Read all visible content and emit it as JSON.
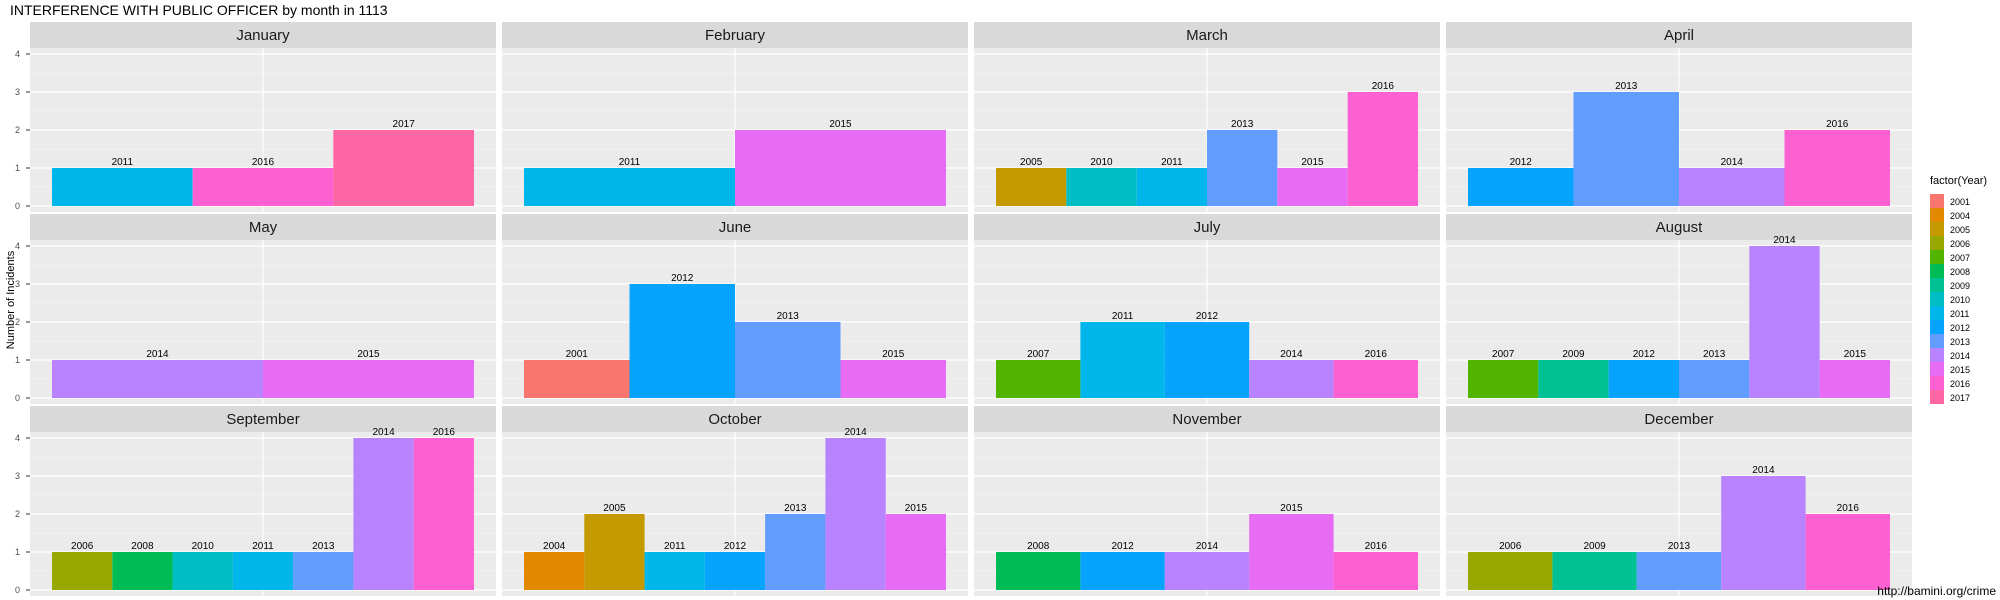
{
  "chart_data": {
    "type": "bar",
    "title": "INTERFERENCE WITH PUBLIC OFFICER by month in 1113",
    "ylabel": "Number of Incidents",
    "xlabel": "",
    "ylim": [
      0,
      4
    ],
    "y_ticks": [
      "0",
      "1",
      "2",
      "3",
      "4"
    ],
    "grid": true,
    "legend": {
      "title": "factor(Year)",
      "position": "right",
      "entries": [
        {
          "label": "2001",
          "color": "#F8766D"
        },
        {
          "label": "2004",
          "color": "#E38900"
        },
        {
          "label": "2005",
          "color": "#C49A00"
        },
        {
          "label": "2006",
          "color": "#99A800"
        },
        {
          "label": "2007",
          "color": "#53B400"
        },
        {
          "label": "2008",
          "color": "#00BC56"
        },
        {
          "label": "2009",
          "color": "#00C094"
        },
        {
          "label": "2010",
          "color": "#00BFC4"
        },
        {
          "label": "2011",
          "color": "#00B6EB"
        },
        {
          "label": "2012",
          "color": "#06A4FF"
        },
        {
          "label": "2013",
          "color": "#619CFF"
        },
        {
          "label": "2014",
          "color": "#B983FF"
        },
        {
          "label": "2015",
          "color": "#E76BF3"
        },
        {
          "label": "2016",
          "color": "#FD61D1"
        },
        {
          "label": "2017",
          "color": "#FF67A4"
        }
      ]
    },
    "panels": [
      {
        "month": "January",
        "bars": [
          {
            "year": "2011",
            "value": 1
          },
          {
            "year": "2016",
            "value": 1
          },
          {
            "year": "2017",
            "value": 2
          }
        ]
      },
      {
        "month": "February",
        "bars": [
          {
            "year": "2011",
            "value": 1
          },
          {
            "year": "2015",
            "value": 2
          }
        ]
      },
      {
        "month": "March",
        "bars": [
          {
            "year": "2005",
            "value": 1
          },
          {
            "year": "2010",
            "value": 1
          },
          {
            "year": "2011",
            "value": 1
          },
          {
            "year": "2013",
            "value": 2
          },
          {
            "year": "2015",
            "value": 1
          },
          {
            "year": "2016",
            "value": 3
          }
        ]
      },
      {
        "month": "April",
        "bars": [
          {
            "year": "2012",
            "value": 1
          },
          {
            "year": "2013",
            "value": 3
          },
          {
            "year": "2014",
            "value": 1
          },
          {
            "year": "2016",
            "value": 2
          }
        ]
      },
      {
        "month": "May",
        "bars": [
          {
            "year": "2014",
            "value": 1
          },
          {
            "year": "2015",
            "value": 1
          }
        ]
      },
      {
        "month": "June",
        "bars": [
          {
            "year": "2001",
            "value": 1
          },
          {
            "year": "2012",
            "value": 3
          },
          {
            "year": "2013",
            "value": 2
          },
          {
            "year": "2015",
            "value": 1
          }
        ]
      },
      {
        "month": "July",
        "bars": [
          {
            "year": "2007",
            "value": 1
          },
          {
            "year": "2011",
            "value": 2
          },
          {
            "year": "2012",
            "value": 2
          },
          {
            "year": "2014",
            "value": 1
          },
          {
            "year": "2016",
            "value": 1
          }
        ]
      },
      {
        "month": "August",
        "bars": [
          {
            "year": "2007",
            "value": 1
          },
          {
            "year": "2009",
            "value": 1
          },
          {
            "year": "2012",
            "value": 1
          },
          {
            "year": "2013",
            "value": 1
          },
          {
            "year": "2014",
            "value": 4
          },
          {
            "year": "2015",
            "value": 1
          }
        ]
      },
      {
        "month": "September",
        "bars": [
          {
            "year": "2006",
            "value": 1
          },
          {
            "year": "2008",
            "value": 1
          },
          {
            "year": "2010",
            "value": 1
          },
          {
            "year": "2011",
            "value": 1
          },
          {
            "year": "2013",
            "value": 1
          },
          {
            "year": "2014",
            "value": 4
          },
          {
            "year": "2016",
            "value": 4
          }
        ]
      },
      {
        "month": "October",
        "bars": [
          {
            "year": "2004",
            "value": 1
          },
          {
            "year": "2005",
            "value": 2
          },
          {
            "year": "2011",
            "value": 1
          },
          {
            "year": "2012",
            "value": 1
          },
          {
            "year": "2013",
            "value": 2
          },
          {
            "year": "2014",
            "value": 4
          },
          {
            "year": "2015",
            "value": 2
          }
        ]
      },
      {
        "month": "November",
        "bars": [
          {
            "year": "2008",
            "value": 1
          },
          {
            "year": "2012",
            "value": 1
          },
          {
            "year": "2014",
            "value": 1
          },
          {
            "year": "2015",
            "value": 2
          },
          {
            "year": "2016",
            "value": 1
          }
        ]
      },
      {
        "month": "December",
        "bars": [
          {
            "year": "2006",
            "value": 1
          },
          {
            "year": "2009",
            "value": 1
          },
          {
            "year": "2013",
            "value": 1
          },
          {
            "year": "2014",
            "value": 3
          },
          {
            "year": "2016",
            "value": 2
          }
        ]
      }
    ]
  },
  "source": "http://bamini.org/crime"
}
